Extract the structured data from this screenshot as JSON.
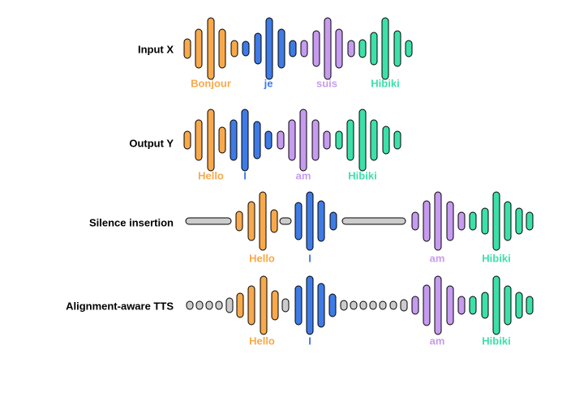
{
  "rows": [
    {
      "label": "Input X",
      "words": [
        "Bonjour",
        "je",
        "suis",
        "Hibiki"
      ]
    },
    {
      "label": "Output Y",
      "words": [
        "Hello",
        "I",
        "am",
        "Hibiki"
      ]
    },
    {
      "label": "Silence insertion",
      "words": [
        "Hello",
        "I",
        "am",
        "Hibiki"
      ]
    },
    {
      "label": "Alignment-aware TTS",
      "words": [
        "Hello",
        "I",
        "am",
        "Hibiki"
      ]
    }
  ]
}
